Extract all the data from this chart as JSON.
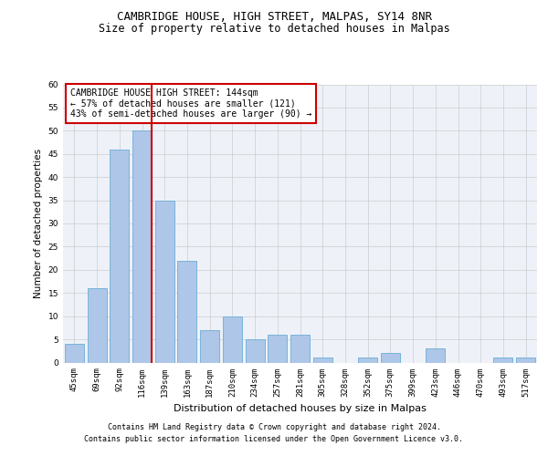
{
  "title": "CAMBRIDGE HOUSE, HIGH STREET, MALPAS, SY14 8NR",
  "subtitle": "Size of property relative to detached houses in Malpas",
  "xlabel": "Distribution of detached houses by size in Malpas",
  "ylabel": "Number of detached properties",
  "categories": [
    "45sqm",
    "69sqm",
    "92sqm",
    "116sqm",
    "139sqm",
    "163sqm",
    "187sqm",
    "210sqm",
    "234sqm",
    "257sqm",
    "281sqm",
    "305sqm",
    "328sqm",
    "352sqm",
    "375sqm",
    "399sqm",
    "423sqm",
    "446sqm",
    "470sqm",
    "493sqm",
    "517sqm"
  ],
  "values": [
    4,
    16,
    46,
    50,
    35,
    22,
    7,
    10,
    5,
    6,
    6,
    1,
    0,
    1,
    2,
    0,
    3,
    0,
    0,
    1,
    1
  ],
  "bar_color": "#aec6e8",
  "bar_edge_color": "#6aaed6",
  "highlight_index": 3,
  "highlight_line_color": "#cc0000",
  "ylim": [
    0,
    60
  ],
  "yticks": [
    0,
    5,
    10,
    15,
    20,
    25,
    30,
    35,
    40,
    45,
    50,
    55,
    60
  ],
  "annotation_text": "CAMBRIDGE HOUSE HIGH STREET: 144sqm\n← 57% of detached houses are smaller (121)\n43% of semi-detached houses are larger (90) →",
  "annotation_box_color": "#ffffff",
  "annotation_box_edge_color": "#cc0000",
  "footer_line1": "Contains HM Land Registry data © Crown copyright and database right 2024.",
  "footer_line2": "Contains public sector information licensed under the Open Government Licence v3.0.",
  "title_fontsize": 9,
  "subtitle_fontsize": 8.5,
  "xlabel_fontsize": 8,
  "ylabel_fontsize": 7.5,
  "tick_fontsize": 6.5,
  "footer_fontsize": 6,
  "annotation_fontsize": 7
}
